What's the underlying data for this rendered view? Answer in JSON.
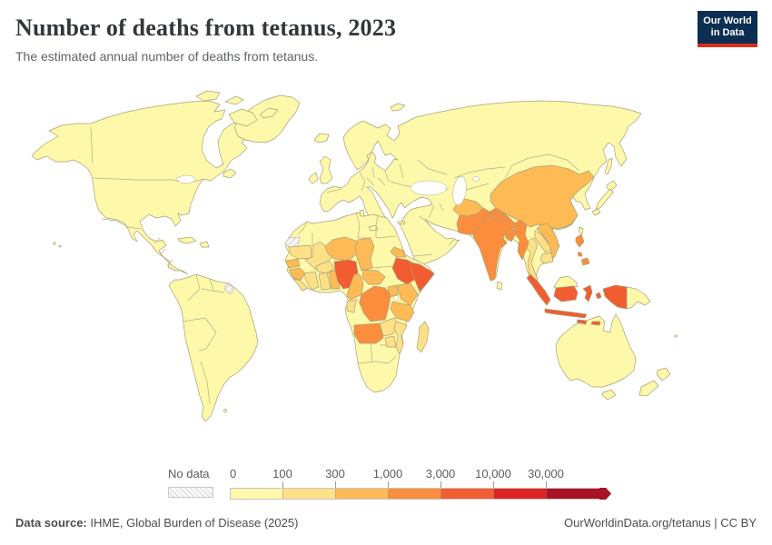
{
  "header": {
    "title": "Number of deaths from tetanus, 2023",
    "subtitle": "The estimated annual number of deaths from tetanus.",
    "logo": {
      "line1": "Our World",
      "line2": "in Data",
      "bg": "#0d2e52",
      "accent": "#dc2d1d"
    }
  },
  "legend": {
    "no_data_label": "No data",
    "tick_labels": [
      "0",
      "100",
      "300",
      "1,000",
      "3,000",
      "10,000",
      "30,000"
    ]
  },
  "footer": {
    "source_label": "Data source:",
    "source_text": " IHME, Global Burden of Disease (2025)",
    "right_text": "OurWorldinData.org/tetanus | CC BY"
  },
  "chart_data": {
    "type": "choropleth",
    "title": "Number of deaths from tetanus",
    "year": "2023",
    "metric": "Estimated annual number of deaths from tetanus",
    "unit": "deaths",
    "scale": "log-binned",
    "legend_position": "bottom",
    "bins": [
      {
        "label": "0",
        "range": "0–100",
        "color": "#fdf8aa"
      },
      {
        "label": "100",
        "range": "100–300",
        "color": "#fee087"
      },
      {
        "label": "300",
        "range": "300–1,000",
        "color": "#fdba55"
      },
      {
        "label": "1,000",
        "range": "1,000–3,000",
        "color": "#fb8d3c"
      },
      {
        "label": "3,000",
        "range": "3,000–10,000",
        "color": "#f25c31"
      },
      {
        "label": "10,000",
        "range": "10,000–30,000",
        "color": "#dc2422"
      },
      {
        "label": "30,000",
        "range": "30,000+",
        "color": "#a81226"
      }
    ],
    "default_bin": 1,
    "default_bin_note": "All other mapped countries (Americas, Europe, Russia, Middle East, North and Southern Africa, Central Asia, Australia, Japan) fall in the 0–100 bin.",
    "no_data_countries": [
      "Western Sahara",
      "French Guiana"
    ],
    "countries": {
      "nigeria": {
        "name": "Nigeria",
        "bin": 5
      },
      "ethiopia": {
        "name": "Ethiopia",
        "bin": 5
      },
      "somalia": {
        "name": "Somalia",
        "bin": 5
      },
      "indonesia": {
        "name": "Indonesia",
        "bin": 5
      },
      "india": {
        "name": "India",
        "bin": 4
      },
      "pakistan": {
        "name": "Pakistan",
        "bin": 4
      },
      "drc": {
        "name": "Democratic Republic of Congo",
        "bin": 4
      },
      "myanmar": {
        "name": "Myanmar",
        "bin": 4
      },
      "angola": {
        "name": "Angola",
        "bin": 4
      },
      "philippines": {
        "name": "Philippines",
        "bin": 4
      },
      "bangladesh": {
        "name": "Bangladesh",
        "bin": 4
      },
      "nepal": {
        "name": "Nepal",
        "bin": 4
      },
      "china": {
        "name": "China",
        "bin": 3
      },
      "afghanistan": {
        "name": "Afghanistan",
        "bin": 3
      },
      "niger": {
        "name": "Niger",
        "bin": 3
      },
      "chad": {
        "name": "Chad",
        "bin": 3
      },
      "cameroon": {
        "name": "Cameroon",
        "bin": 3
      },
      "car": {
        "name": "Central African Republic",
        "bin": 3
      },
      "eritrea": {
        "name": "Eritrea",
        "bin": 3
      },
      "uganda": {
        "name": "Uganda",
        "bin": 3
      },
      "kenya": {
        "name": "Kenya",
        "bin": 3
      },
      "tanzania": {
        "name": "Tanzania",
        "bin": 3
      },
      "guinea": {
        "name": "Guinea",
        "bin": 3
      },
      "senegal": {
        "name": "Senegal",
        "bin": 3
      },
      "benin": {
        "name": "Benin & Togo",
        "bin": 3
      },
      "vietnam": {
        "name": "Vietnam",
        "bin": 3
      },
      "mauritania": {
        "name": "Mauritania",
        "bin": 2
      },
      "mali": {
        "name": "Mali",
        "bin": 2
      },
      "burkina-faso": {
        "name": "Burkina Faso",
        "bin": 2
      },
      "cote-divoire": {
        "name": "Cote d'Ivoire",
        "bin": 2
      },
      "ghana": {
        "name": "Ghana",
        "bin": 2
      },
      "sierra-leone-liberia": {
        "name": "Sierra Leone & Liberia",
        "bin": 2
      },
      "gabon": {
        "name": "Gabon",
        "bin": 2
      },
      "zambia": {
        "name": "Zambia",
        "bin": 2
      },
      "zimbabwe": {
        "name": "Zimbabwe",
        "bin": 2
      },
      "mozambique": {
        "name": "Mozambique & Malawi",
        "bin": 2
      },
      "madagascar": {
        "name": "Madagascar",
        "bin": 2
      },
      "thailand": {
        "name": "Thailand",
        "bin": 2
      },
      "laos": {
        "name": "Laos",
        "bin": 2
      },
      "cambodia": {
        "name": "Cambodia",
        "bin": 2
      },
      "western-sahara": {
        "name": "Western Sahara",
        "bin": "no-data"
      },
      "french-guiana": {
        "name": "French Guiana",
        "bin": "no-data"
      }
    }
  }
}
